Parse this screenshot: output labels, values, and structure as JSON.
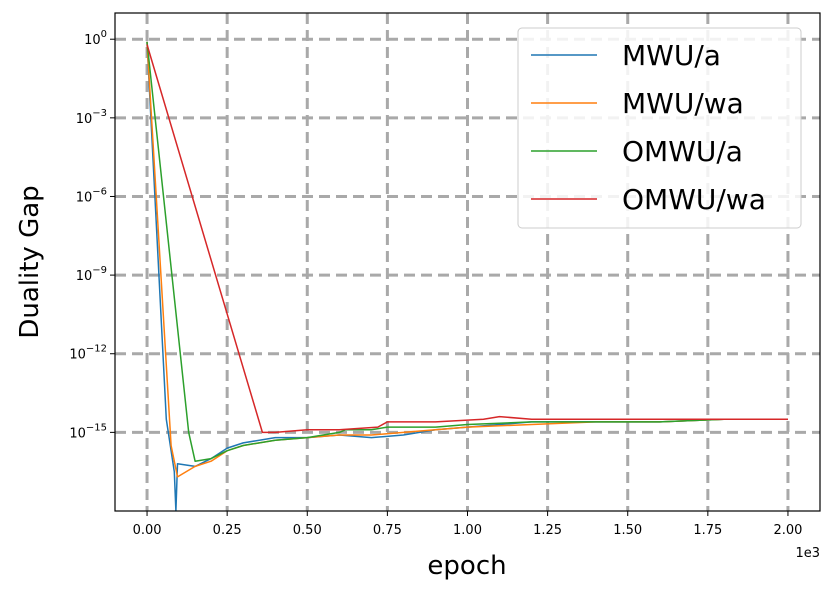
{
  "chart_data": {
    "type": "line",
    "xlabel": "epoch",
    "ylabel": "Duality Gap",
    "x_offset_text": "1e3",
    "xlim": [
      -0.1,
      2.1
    ],
    "ylim_log10": [
      -18,
      1
    ],
    "y_scale": "log",
    "grid": true,
    "legend_placement": "top-right",
    "x_ticks": [
      0.0,
      0.25,
      0.5,
      0.75,
      1.0,
      1.25,
      1.5,
      1.75,
      2.0
    ],
    "x_tick_labels": [
      "0.00",
      "0.25",
      "0.50",
      "0.75",
      "1.00",
      "1.25",
      "1.50",
      "1.75",
      "2.00"
    ],
    "y_ticks_log10": [
      0,
      -3,
      -6,
      -9,
      -12,
      -15
    ],
    "y_tick_labels": [
      {
        "base": "10",
        "exp": "0"
      },
      {
        "base": "10",
        "exp": "−3"
      },
      {
        "base": "10",
        "exp": "−6"
      },
      {
        "base": "10",
        "exp": "−9"
      },
      {
        "base": "10",
        "exp": "−12"
      },
      {
        "base": "10",
        "exp": "−15"
      }
    ],
    "series": [
      {
        "name": "MWU/a",
        "color": "#1f77b4",
        "points_log10": [
          [
            0.0,
            -0.1
          ],
          [
            0.06,
            -14.5
          ],
          [
            0.085,
            -16.5
          ],
          [
            0.09,
            -18
          ],
          [
            0.095,
            -16.2
          ],
          [
            0.15,
            -16.3
          ],
          [
            0.2,
            -16.0
          ],
          [
            0.25,
            -15.6
          ],
          [
            0.3,
            -15.4
          ],
          [
            0.4,
            -15.2
          ],
          [
            0.5,
            -15.2
          ],
          [
            0.6,
            -15.1
          ],
          [
            0.7,
            -15.2
          ],
          [
            0.8,
            -15.1
          ],
          [
            0.9,
            -14.9
          ],
          [
            1.0,
            -14.8
          ],
          [
            1.2,
            -14.6
          ],
          [
            1.4,
            -14.6
          ],
          [
            1.6,
            -14.6
          ],
          [
            1.8,
            -14.5
          ],
          [
            2.0,
            -14.5
          ]
        ]
      },
      {
        "name": "MWU/wa",
        "color": "#ff7f0e",
        "points_log10": [
          [
            0.0,
            -0.1
          ],
          [
            0.075,
            -15.5
          ],
          [
            0.095,
            -16.7
          ],
          [
            0.15,
            -16.3
          ],
          [
            0.2,
            -16.1
          ],
          [
            0.25,
            -15.7
          ],
          [
            0.3,
            -15.5
          ],
          [
            0.4,
            -15.3
          ],
          [
            0.5,
            -15.2
          ],
          [
            0.6,
            -15.1
          ],
          [
            0.7,
            -15.1
          ],
          [
            0.8,
            -15.0
          ],
          [
            0.9,
            -14.9
          ],
          [
            1.0,
            -14.8
          ],
          [
            1.2,
            -14.7
          ],
          [
            1.4,
            -14.6
          ],
          [
            1.6,
            -14.6
          ],
          [
            1.8,
            -14.5
          ],
          [
            2.0,
            -14.5
          ]
        ]
      },
      {
        "name": "OMWU/a",
        "color": "#2ca02c",
        "points_log10": [
          [
            0.0,
            -0.1
          ],
          [
            0.13,
            -15.0
          ],
          [
            0.15,
            -16.1
          ],
          [
            0.2,
            -16.0
          ],
          [
            0.25,
            -15.7
          ],
          [
            0.3,
            -15.5
          ],
          [
            0.4,
            -15.3
          ],
          [
            0.5,
            -15.2
          ],
          [
            0.6,
            -15.0
          ],
          [
            0.62,
            -14.9
          ],
          [
            0.7,
            -14.9
          ],
          [
            0.75,
            -14.8
          ],
          [
            0.9,
            -14.8
          ],
          [
            1.0,
            -14.7
          ],
          [
            1.2,
            -14.6
          ],
          [
            1.4,
            -14.6
          ],
          [
            1.6,
            -14.6
          ],
          [
            1.8,
            -14.5
          ],
          [
            2.0,
            -14.5
          ]
        ]
      },
      {
        "name": "OMWU/wa",
        "color": "#d62728",
        "points_log10": [
          [
            0.0,
            -0.2
          ],
          [
            0.36,
            -15.0
          ],
          [
            0.4,
            -15.0
          ],
          [
            0.5,
            -14.9
          ],
          [
            0.6,
            -14.9
          ],
          [
            0.72,
            -14.8
          ],
          [
            0.75,
            -14.6
          ],
          [
            0.9,
            -14.6
          ],
          [
            1.05,
            -14.5
          ],
          [
            1.1,
            -14.4
          ],
          [
            1.2,
            -14.5
          ],
          [
            1.4,
            -14.5
          ],
          [
            1.6,
            -14.5
          ],
          [
            1.8,
            -14.5
          ],
          [
            2.0,
            -14.5
          ]
        ]
      }
    ]
  }
}
